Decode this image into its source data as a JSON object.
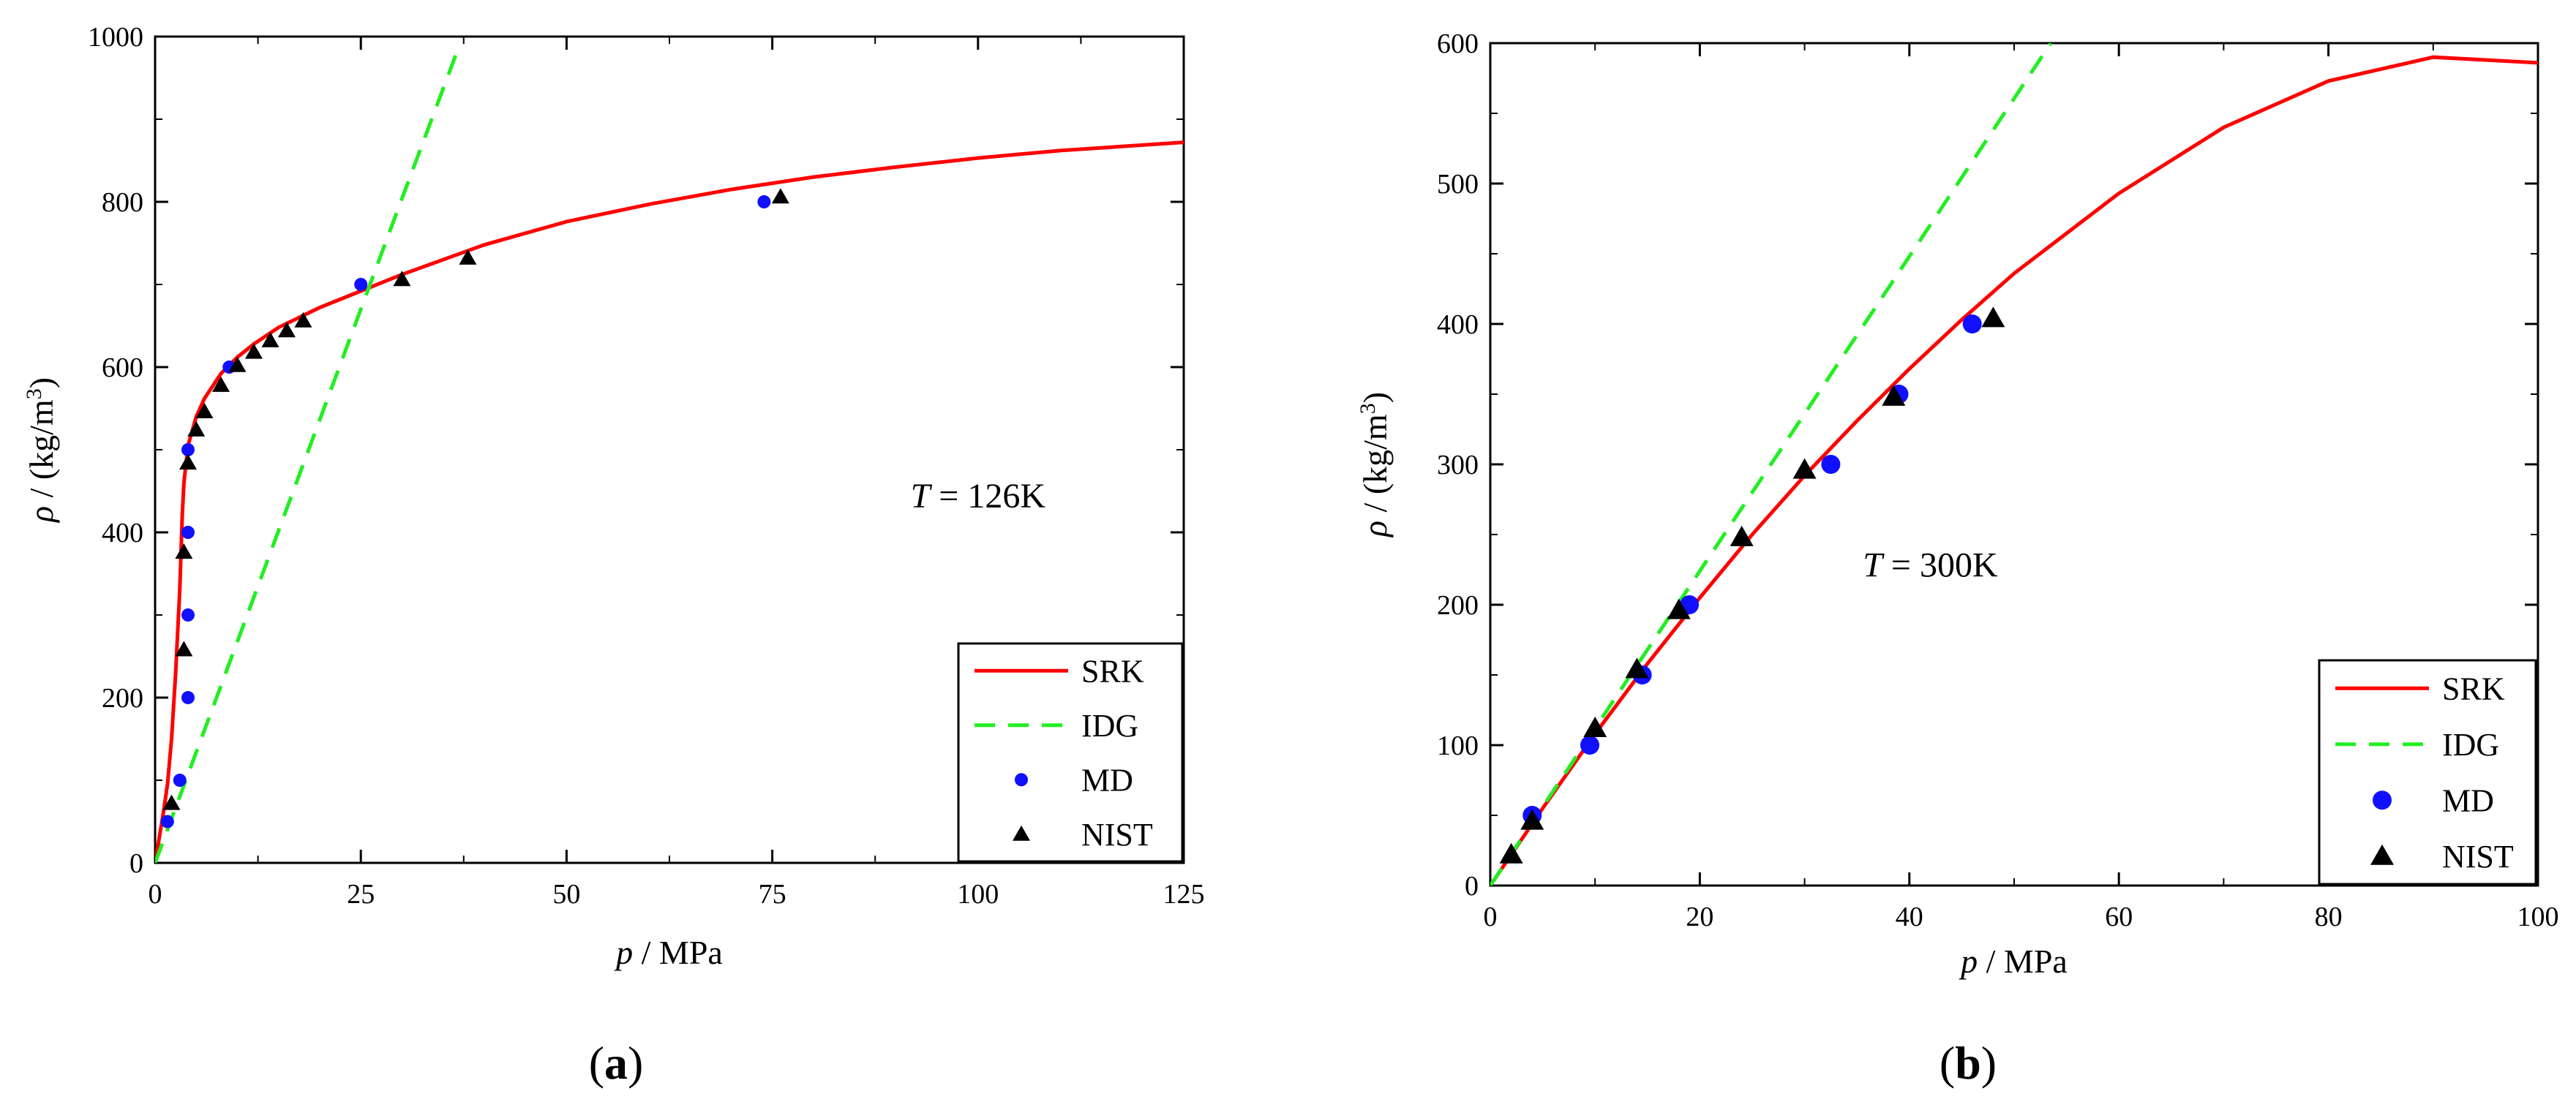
{
  "chart_data": [
    {
      "id": "a",
      "panel_label": "(a)",
      "label_char": "a",
      "type": "line",
      "xlabel": {
        "var": "p",
        "unit": " / MPa"
      },
      "ylabel": {
        "var": "ρ",
        "unit": " / (kg/m",
        "sup": "3",
        "close": ")"
      },
      "xlim": [
        0,
        125
      ],
      "ylim": [
        0,
        1000
      ],
      "xticks": [
        0,
        25,
        50,
        75,
        100,
        125
      ],
      "yticks": [
        0,
        200,
        400,
        600,
        800,
        1000
      ],
      "annotation": {
        "var": "T",
        "rest": " = 126K",
        "at": [
          100,
          430
        ]
      },
      "legend": [
        "SRK",
        "IDG",
        "MD",
        "NIST"
      ],
      "series": [
        {
          "name": "SRK",
          "kind": "line",
          "color": "#ff0000",
          "x": [
            0,
            0.5,
            1,
            1.5,
            2,
            2.5,
            3,
            3.3,
            3.5,
            4,
            5,
            6,
            8,
            10,
            12,
            15,
            20,
            25,
            30,
            40,
            50,
            60,
            70,
            80,
            90,
            100,
            110,
            125
          ],
          "y": [
            0,
            30,
            60,
            95,
            150,
            230,
            330,
            420,
            460,
            505,
            540,
            562,
            592,
            612,
            628,
            648,
            672,
            692,
            712,
            748,
            776,
            797,
            815,
            830,
            842,
            853,
            862,
            872
          ]
        },
        {
          "name": "IDG",
          "kind": "dashed",
          "color": "#22ee22",
          "x": [
            0,
            10,
            20,
            30,
            37
          ],
          "y": [
            0,
            268,
            536,
            804,
            990
          ]
        },
        {
          "name": "MD",
          "kind": "points",
          "marker": "circle",
          "color": "#1010ff",
          "x": [
            1.5,
            3,
            4,
            4,
            4,
            4,
            9,
            25,
            74
          ],
          "y": [
            50,
            100,
            200,
            300,
            400,
            500,
            600,
            700,
            800
          ]
        },
        {
          "name": "NIST",
          "kind": "points",
          "marker": "triangle",
          "color": "#000000",
          "x": [
            2,
            3.5,
            3.5,
            4,
            5,
            6,
            8,
            10,
            12,
            14,
            16,
            18,
            30,
            38,
            76
          ],
          "y": [
            72,
            258,
            376,
            484,
            524,
            546,
            578,
            602,
            618,
            632,
            644,
            656,
            706,
            732,
            806
          ]
        }
      ]
    },
    {
      "id": "b",
      "panel_label": "(b)",
      "label_char": "b",
      "type": "line",
      "xlabel": {
        "var": "p",
        "unit": " / MPa"
      },
      "ylabel": {
        "var": "ρ",
        "unit": " / (kg/m",
        "sup": "3",
        "close": ")"
      },
      "xlim": [
        0,
        100
      ],
      "ylim": [
        0,
        600
      ],
      "xticks": [
        0,
        20,
        40,
        60,
        80,
        100
      ],
      "yticks": [
        0,
        100,
        200,
        300,
        400,
        500,
        600
      ],
      "annotation": {
        "var": "T",
        "rest": " = 300K",
        "at": [
          42,
          220
        ]
      },
      "legend": [
        "SRK",
        "IDG",
        "MD",
        "NIST"
      ],
      "series": [
        {
          "name": "SRK",
          "kind": "line",
          "color": "#ff0000",
          "x": [
            0,
            5,
            10,
            15,
            20,
            25,
            30,
            35,
            40,
            45,
            50,
            60,
            70,
            80,
            90,
            100
          ],
          "y": [
            0,
            55,
            108,
            158,
            205,
            250,
            292,
            331,
            368,
            403,
            436,
            493,
            540,
            573,
            590,
            586
          ]
        },
        {
          "name": "IDG",
          "kind": "dashed",
          "color": "#22ee22",
          "x": [
            0,
            20,
            40,
            53.5
          ],
          "y": [
            0,
            224,
            448,
            600
          ]
        },
        {
          "name": "MD",
          "kind": "points",
          "marker": "circle",
          "color": "#1010ff",
          "x": [
            4,
            9.5,
            14.5,
            19,
            32.5,
            39,
            46
          ],
          "y": [
            50,
            100,
            150,
            200,
            300,
            350,
            400
          ]
        },
        {
          "name": "NIST",
          "kind": "points",
          "marker": "triangle",
          "color": "#000000",
          "x": [
            2,
            4,
            10,
            14,
            18,
            24,
            30,
            38.5,
            48
          ],
          "y": [
            22,
            46,
            112,
            154,
            196,
            248,
            296,
            348,
            404
          ]
        }
      ]
    }
  ]
}
